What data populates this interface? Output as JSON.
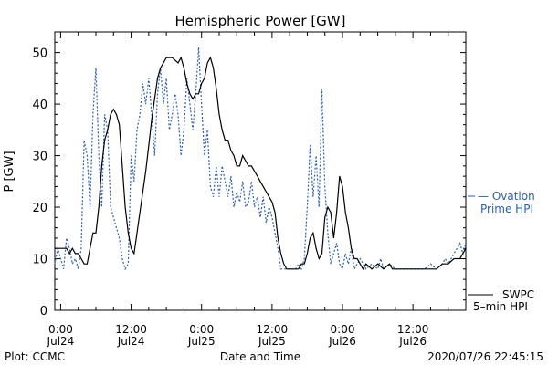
{
  "chart_data": {
    "type": "line",
    "title": "Hemispheric Power [GW]",
    "ylabel": "P [GW]",
    "xlabel": "Date and Time",
    "ylim": [
      0,
      54
    ],
    "xlim_hours": [
      -1,
      69
    ],
    "yticks": [
      {
        "value": 0,
        "label": "0"
      },
      {
        "value": 10,
        "label": "10"
      },
      {
        "value": 20,
        "label": "20"
      },
      {
        "value": 30,
        "label": "30"
      },
      {
        "value": 40,
        "label": "40"
      },
      {
        "value": 50,
        "label": "50"
      }
    ],
    "xticks": [
      {
        "hour": 0,
        "time": "0:00",
        "date": "Jul24"
      },
      {
        "hour": 12,
        "time": "12:00",
        "date": "Jul24"
      },
      {
        "hour": 24,
        "time": "0:00",
        "date": "Jul25"
      },
      {
        "hour": 36,
        "time": "12:00",
        "date": "Jul25"
      },
      {
        "hour": 48,
        "time": "0:00",
        "date": "Jul26"
      },
      {
        "hour": 60,
        "time": "12:00",
        "date": "Jul26"
      }
    ],
    "legend": [
      {
        "lines": [
          "— Ovation",
          "Prime HPI"
        ],
        "color": "#2a5db8",
        "placement": "right-middle"
      },
      {
        "lines": [
          "SWPC",
          "5–min HPI"
        ],
        "color": "#000000",
        "placement": "right-bottom"
      }
    ],
    "series": [
      {
        "name": "SWPC 5-min HPI",
        "color": "#000000",
        "dash": "none",
        "points": [
          [
            -1,
            12
          ],
          [
            0,
            12
          ],
          [
            1,
            12
          ],
          [
            1.5,
            11
          ],
          [
            2,
            12
          ],
          [
            2.5,
            11
          ],
          [
            3,
            11
          ],
          [
            3.5,
            10
          ],
          [
            4,
            9
          ],
          [
            4.5,
            9
          ],
          [
            5,
            12
          ],
          [
            5.5,
            15
          ],
          [
            6,
            15
          ],
          [
            6.5,
            20
          ],
          [
            7,
            28
          ],
          [
            7.5,
            33
          ],
          [
            8,
            35
          ],
          [
            8.5,
            38
          ],
          [
            9,
            39
          ],
          [
            9.5,
            38
          ],
          [
            10,
            36
          ],
          [
            10.5,
            28
          ],
          [
            11,
            20
          ],
          [
            11.5,
            15
          ],
          [
            12,
            12
          ],
          [
            12.5,
            11
          ],
          [
            13,
            15
          ],
          [
            13.5,
            19
          ],
          [
            14,
            23
          ],
          [
            14.5,
            27
          ],
          [
            15,
            32
          ],
          [
            15.5,
            37
          ],
          [
            16,
            41
          ],
          [
            16.5,
            45
          ],
          [
            17,
            47
          ],
          [
            17.5,
            48
          ],
          [
            18,
            49
          ],
          [
            19,
            49
          ],
          [
            20,
            48
          ],
          [
            20.5,
            49
          ],
          [
            21,
            47
          ],
          [
            21.5,
            44
          ],
          [
            22,
            42
          ],
          [
            22.5,
            41
          ],
          [
            23,
            42
          ],
          [
            23.5,
            42
          ],
          [
            24,
            44
          ],
          [
            24.5,
            45
          ],
          [
            25,
            48
          ],
          [
            25.5,
            49
          ],
          [
            26,
            47
          ],
          [
            26.5,
            43
          ],
          [
            27,
            38
          ],
          [
            27.5,
            35
          ],
          [
            28,
            33
          ],
          [
            28.5,
            33
          ],
          [
            29,
            31
          ],
          [
            29.5,
            30
          ],
          [
            30,
            28
          ],
          [
            30.5,
            28
          ],
          [
            31,
            30
          ],
          [
            31.5,
            29
          ],
          [
            32,
            28
          ],
          [
            32.5,
            28
          ],
          [
            33,
            27
          ],
          [
            33.5,
            26
          ],
          [
            34,
            25
          ],
          [
            34.5,
            24
          ],
          [
            35,
            23
          ],
          [
            35.5,
            22
          ],
          [
            36,
            21
          ],
          [
            36.5,
            19
          ],
          [
            37,
            14
          ],
          [
            37.5,
            11
          ],
          [
            38,
            9
          ],
          [
            38.5,
            8
          ],
          [
            39,
            8
          ],
          [
            40,
            8
          ],
          [
            40.5,
            8
          ],
          [
            41,
            9
          ],
          [
            41.5,
            9
          ],
          [
            42,
            11
          ],
          [
            42.5,
            14
          ],
          [
            43,
            15
          ],
          [
            43.5,
            12
          ],
          [
            44,
            10
          ],
          [
            44.5,
            11
          ],
          [
            45,
            18
          ],
          [
            45.5,
            20
          ],
          [
            46,
            19
          ],
          [
            46.5,
            14
          ],
          [
            47,
            19
          ],
          [
            47.5,
            26
          ],
          [
            48,
            24
          ],
          [
            48.5,
            19
          ],
          [
            49,
            16
          ],
          [
            49.5,
            12
          ],
          [
            50,
            10
          ],
          [
            50.5,
            10
          ],
          [
            51,
            9
          ],
          [
            51.5,
            8
          ],
          [
            52,
            9
          ],
          [
            53,
            8
          ],
          [
            54,
            9
          ],
          [
            55,
            8
          ],
          [
            56,
            9
          ],
          [
            56.5,
            8
          ],
          [
            57,
            8
          ],
          [
            58,
            8
          ],
          [
            60,
            8
          ],
          [
            62,
            8
          ],
          [
            64,
            8
          ],
          [
            65,
            9
          ],
          [
            66,
            9
          ],
          [
            67,
            10
          ],
          [
            68,
            10
          ],
          [
            68.5,
            11
          ],
          [
            69,
            12
          ]
        ]
      },
      {
        "name": "Ovation Prime HPI",
        "color": "#2a5db8",
        "dash": "2,2",
        "points": [
          [
            -1,
            9
          ],
          [
            -0.5,
            12
          ],
          [
            0,
            10
          ],
          [
            0.5,
            8
          ],
          [
            1,
            14
          ],
          [
            1.5,
            12
          ],
          [
            2,
            9
          ],
          [
            2.5,
            10
          ],
          [
            3,
            8
          ],
          [
            3.5,
            12
          ],
          [
            4,
            33
          ],
          [
            4.5,
            30
          ],
          [
            5,
            20
          ],
          [
            5.5,
            38
          ],
          [
            6,
            47
          ],
          [
            6.5,
            30
          ],
          [
            7,
            20
          ],
          [
            7.5,
            38
          ],
          [
            8,
            35
          ],
          [
            8.5,
            20
          ],
          [
            9,
            18
          ],
          [
            9.5,
            16
          ],
          [
            10,
            14
          ],
          [
            10.5,
            10
          ],
          [
            11,
            8
          ],
          [
            11.5,
            9
          ],
          [
            12,
            30
          ],
          [
            12.5,
            25
          ],
          [
            13,
            35
          ],
          [
            13.5,
            38
          ],
          [
            14,
            44
          ],
          [
            14.5,
            40
          ],
          [
            15,
            45
          ],
          [
            15.5,
            38
          ],
          [
            16,
            30
          ],
          [
            16.5,
            42
          ],
          [
            17,
            47
          ],
          [
            17.5,
            40
          ],
          [
            18,
            45
          ],
          [
            18.5,
            35
          ],
          [
            19,
            38
          ],
          [
            19.5,
            42
          ],
          [
            20,
            38
          ],
          [
            20.5,
            30
          ],
          [
            21,
            35
          ],
          [
            21.5,
            45
          ],
          [
            22,
            40
          ],
          [
            22.5,
            35
          ],
          [
            23,
            42
          ],
          [
            23.5,
            51
          ],
          [
            24,
            40
          ],
          [
            24.5,
            30
          ],
          [
            25,
            35
          ],
          [
            25.5,
            24
          ],
          [
            26,
            22
          ],
          [
            26.5,
            28
          ],
          [
            27,
            22
          ],
          [
            27.5,
            28
          ],
          [
            28,
            25
          ],
          [
            28.5,
            22
          ],
          [
            29,
            26
          ],
          [
            29.5,
            20
          ],
          [
            30,
            23
          ],
          [
            30.5,
            21
          ],
          [
            31,
            25
          ],
          [
            31.5,
            20
          ],
          [
            32,
            21
          ],
          [
            32.5,
            25
          ],
          [
            33,
            20
          ],
          [
            33.5,
            22
          ],
          [
            34,
            18
          ],
          [
            34.5,
            22
          ],
          [
            35,
            17
          ],
          [
            35.5,
            20
          ],
          [
            36,
            18
          ],
          [
            36.5,
            15
          ],
          [
            37,
            12
          ],
          [
            37.5,
            8
          ],
          [
            38,
            8
          ],
          [
            39,
            8
          ],
          [
            40,
            8
          ],
          [
            40.5,
            9
          ],
          [
            41,
            8
          ],
          [
            41.5,
            10
          ],
          [
            42,
            20
          ],
          [
            42.5,
            32
          ],
          [
            43,
            22
          ],
          [
            43.5,
            30
          ],
          [
            44,
            20
          ],
          [
            44.5,
            43
          ],
          [
            45,
            24
          ],
          [
            45.5,
            15
          ],
          [
            46,
            9
          ],
          [
            46.5,
            11
          ],
          [
            47,
            13
          ],
          [
            47.5,
            9
          ],
          [
            48,
            8
          ],
          [
            48.5,
            11
          ],
          [
            49,
            9
          ],
          [
            49.5,
            12
          ],
          [
            50,
            8
          ],
          [
            51,
            10
          ],
          [
            52,
            8
          ],
          [
            53,
            9
          ],
          [
            54,
            8
          ],
          [
            54.5,
            10
          ],
          [
            55,
            8
          ],
          [
            56,
            9
          ],
          [
            57,
            8
          ],
          [
            58,
            8
          ],
          [
            60,
            8
          ],
          [
            62,
            8
          ],
          [
            63,
            9
          ],
          [
            64,
            8
          ],
          [
            65,
            9
          ],
          [
            65.5,
            10
          ],
          [
            66,
            9
          ],
          [
            66.5,
            10
          ],
          [
            67,
            11
          ],
          [
            67.5,
            12
          ],
          [
            68,
            13
          ],
          [
            68.5,
            11
          ],
          [
            69,
            13
          ]
        ]
      }
    ]
  },
  "footer": {
    "plot_credit": "Plot: CCMC",
    "timestamp": "2020/07/26 22:45:15"
  }
}
